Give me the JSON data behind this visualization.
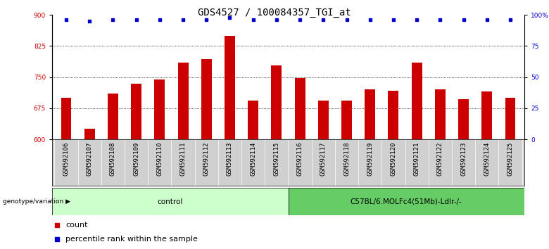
{
  "title": "GDS4527 / 100084357_TGI_at",
  "samples": [
    "GSM592106",
    "GSM592107",
    "GSM592108",
    "GSM592109",
    "GSM592110",
    "GSM592111",
    "GSM592112",
    "GSM592113",
    "GSM592114",
    "GSM592115",
    "GSM592116",
    "GSM592117",
    "GSM592118",
    "GSM592119",
    "GSM592120",
    "GSM592121",
    "GSM592122",
    "GSM592123",
    "GSM592124",
    "GSM592125"
  ],
  "bar_values": [
    700,
    625,
    710,
    735,
    745,
    785,
    793,
    850,
    693,
    778,
    748,
    693,
    693,
    720,
    718,
    785,
    720,
    697,
    715,
    700
  ],
  "percentile_values": [
    96,
    95,
    96,
    96,
    96,
    96,
    96,
    98,
    96,
    96,
    96,
    96,
    96,
    96,
    96,
    96,
    96,
    96,
    96,
    96
  ],
  "bar_color": "#cc0000",
  "dot_color": "#0000cc",
  "ylim_left": [
    600,
    900
  ],
  "ylim_right": [
    0,
    100
  ],
  "yticks_left": [
    600,
    675,
    750,
    825,
    900
  ],
  "yticks_right": [
    0,
    25,
    50,
    75,
    100
  ],
  "ytick_labels_right": [
    "0",
    "25",
    "50",
    "75",
    "100%"
  ],
  "hlines": [
    675,
    750,
    825
  ],
  "control_samples": 10,
  "group1_label": "control",
  "group2_label": "C57BL/6.MOLFc4(51Mb)-Ldlr-/-",
  "group1_color": "#ccffcc",
  "group2_color": "#66cc66",
  "genotype_label": "genotype/variation",
  "legend_count_label": "count",
  "legend_pct_label": "percentile rank within the sample",
  "ax_bg_color": "#ffffff",
  "sample_bg_color": "#d0d0d0",
  "title_fontsize": 10,
  "tick_fontsize": 6.5,
  "label_fontsize": 8
}
